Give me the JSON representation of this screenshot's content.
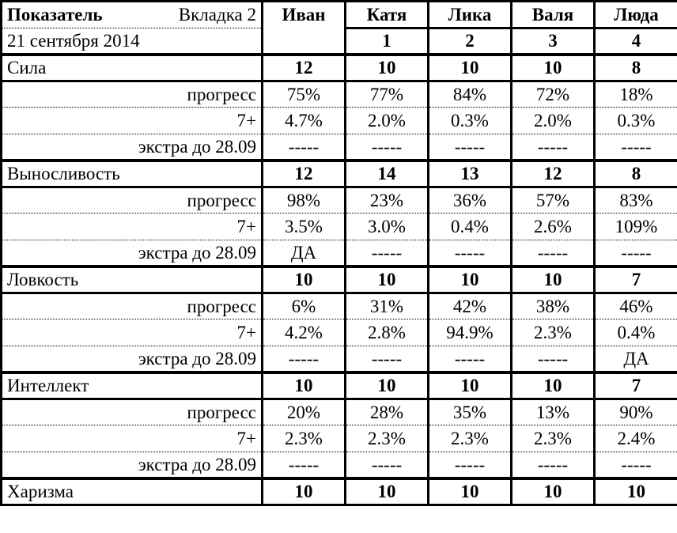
{
  "header": {
    "title": "Показатель",
    "tab": "Вкладка 2",
    "date": "21 сентября 2014",
    "columns": [
      {
        "name": "Иван",
        "number": ""
      },
      {
        "name": "Катя",
        "number": "1"
      },
      {
        "name": "Лика",
        "number": "2"
      },
      {
        "name": "Валя",
        "number": "3"
      },
      {
        "name": "Люда",
        "number": "4"
      }
    ]
  },
  "sub_labels": {
    "progress": "прогресс",
    "seven_plus": "7+",
    "extra": "экстра до 28.09"
  },
  "stats": [
    {
      "name": "Сила",
      "values": [
        "12",
        "10",
        "10",
        "10",
        "8"
      ],
      "progress": [
        "75%",
        "77%",
        "84%",
        "72%",
        "18%"
      ],
      "seven_plus": [
        "4.7%",
        "2.0%",
        "0.3%",
        "2.0%",
        "0.3%"
      ],
      "extra": [
        "-----",
        "-----",
        "-----",
        "-----",
        "-----"
      ]
    },
    {
      "name": "Выносливость",
      "values": [
        "12",
        "14",
        "13",
        "12",
        "8"
      ],
      "progress": [
        "98%",
        "23%",
        "36%",
        "57%",
        "83%"
      ],
      "seven_plus": [
        "3.5%",
        "3.0%",
        "0.4%",
        "2.6%",
        "109%"
      ],
      "extra": [
        "ДА",
        "-----",
        "-----",
        "-----",
        "-----"
      ]
    },
    {
      "name": "Ловкость",
      "values": [
        "10",
        "10",
        "10",
        "10",
        "7"
      ],
      "progress": [
        "6%",
        "31%",
        "42%",
        "38%",
        "46%"
      ],
      "seven_plus": [
        "4.2%",
        "2.8%",
        "94.9%",
        "2.3%",
        "0.4%"
      ],
      "extra": [
        "-----",
        "-----",
        "-----",
        "-----",
        "ДА"
      ]
    },
    {
      "name": "Интеллект",
      "values": [
        "10",
        "10",
        "10",
        "10",
        "7"
      ],
      "progress": [
        "20%",
        "28%",
        "35%",
        "13%",
        "90%"
      ],
      "seven_plus": [
        "2.3%",
        "2.3%",
        "2.3%",
        "2.3%",
        "2.4%"
      ],
      "extra": [
        "-----",
        "-----",
        "-----",
        "-----",
        "-----"
      ]
    },
    {
      "name": "Харизма",
      "values": [
        "10",
        "10",
        "10",
        "10",
        "10"
      ]
    }
  ]
}
